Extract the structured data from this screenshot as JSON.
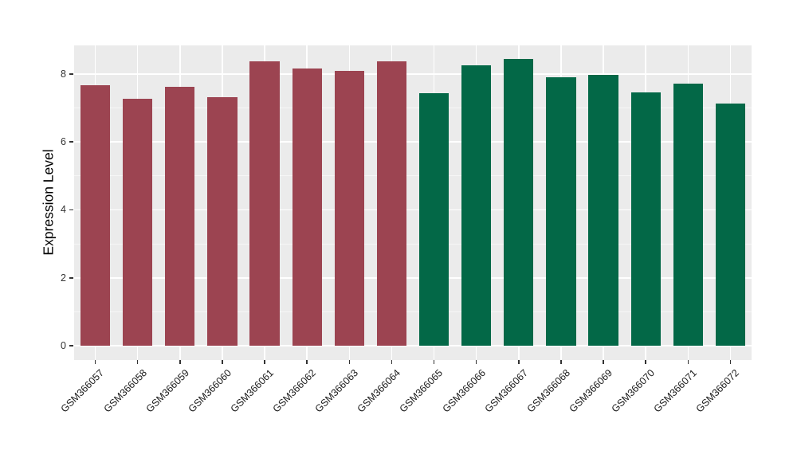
{
  "figure": {
    "background_color": "#FFFFFF",
    "panel_background_color": "#EBEBEB",
    "grid_major_color": "#FFFFFF",
    "grid_minor_color": "rgba(255,255,255,0.55)",
    "axis_tick_color": "#333333",
    "axis_text_color": "#333333"
  },
  "chart_data": {
    "type": "bar",
    "title": "",
    "xlabel": "",
    "ylabel": "Expression Level",
    "categories": [
      "GSM366057",
      "GSM366058",
      "GSM366059",
      "GSM366060",
      "GSM366061",
      "GSM366062",
      "GSM366063",
      "GSM366064",
      "GSM366065",
      "GSM366066",
      "GSM366067",
      "GSM366068",
      "GSM366069",
      "GSM366070",
      "GSM366071",
      "GSM366072"
    ],
    "values": [
      7.66,
      7.27,
      7.61,
      7.31,
      8.38,
      8.16,
      8.09,
      8.36,
      7.43,
      8.26,
      8.43,
      7.9,
      7.97,
      7.46,
      7.72,
      7.14
    ],
    "bar_colors": [
      "#9C4451",
      "#9C4451",
      "#9C4451",
      "#9C4451",
      "#9C4451",
      "#9C4451",
      "#9C4451",
      "#9C4451",
      "#036847",
      "#036847",
      "#036847",
      "#036847",
      "#036847",
      "#036847",
      "#036847",
      "#036847"
    ],
    "group_colors": {
      "bars_1_to_8": "#9C4451",
      "bars_9_to_16": "#036847"
    },
    "yticks": [
      0,
      2,
      4,
      6,
      8
    ],
    "ytick_labels": [
      "0",
      "2",
      "4",
      "6",
      "8"
    ],
    "yticks_minor": [
      1,
      3,
      5,
      7
    ],
    "ylim": [
      -0.42,
      8.84
    ],
    "bar_width_fraction": 0.7,
    "x_label_angle": -45,
    "grid": true,
    "legend": "none"
  }
}
